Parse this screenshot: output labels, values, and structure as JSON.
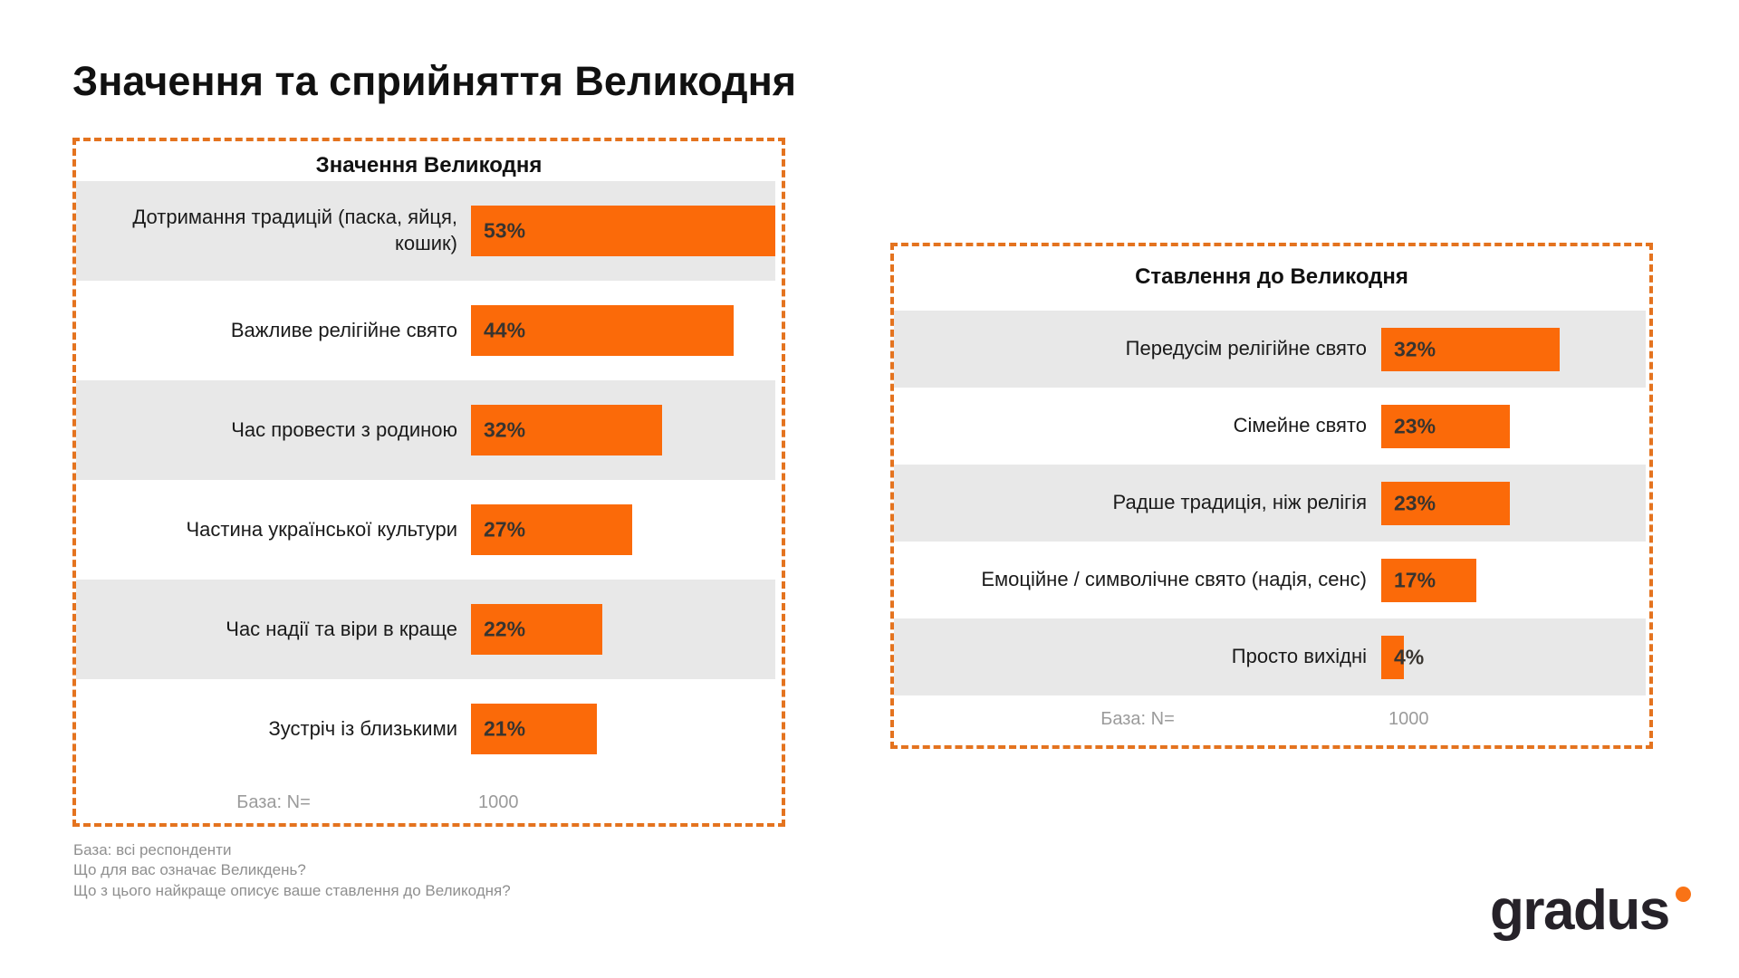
{
  "page": {
    "title": "Значення та сприйняття Великодня"
  },
  "colors": {
    "bar": "#FB6A09",
    "panel_border": "#E4731F",
    "row_shade": "#E8E8E8",
    "muted_text": "#9B9B9B",
    "footnote_text": "#8F8F8F",
    "logo_text": "#262229",
    "logo_dot": "#F97316"
  },
  "chart_data": [
    {
      "type": "bar",
      "orientation": "horizontal",
      "title": "Значення Великодня",
      "categories": [
        "Дотримання традицій (паска, яйця, кошик)",
        "Важливе релігійне свято",
        "Час провести з родиною",
        "Частина української культури",
        "Час надії та віри в краще",
        "Зустріч із близькими"
      ],
      "values": [
        53,
        44,
        32,
        27,
        22,
        21
      ],
      "value_labels": [
        "53%",
        "44%",
        "32%",
        "27%",
        "22%",
        "21%"
      ],
      "unit": "%",
      "xlim": [
        0,
        53
      ],
      "grid": false,
      "legend": false,
      "base_label": "База: N=",
      "base_value": "1000"
    },
    {
      "type": "bar",
      "orientation": "horizontal",
      "title": "Ставлення до Великодня",
      "categories": [
        "Передусім релігійне свято",
        "Сімейне свято",
        "Радше традиція, ніж релігія",
        "Емоційне / символічне свято (надія, сенс)",
        "Просто вихідні"
      ],
      "values": [
        32,
        23,
        23,
        17,
        4
      ],
      "value_labels": [
        "32%",
        "23%",
        "23%",
        "17%",
        "4%"
      ],
      "unit": "%",
      "xlim": [
        0,
        32
      ],
      "grid": false,
      "legend": false,
      "base_label": "База: N=",
      "base_value": "1000"
    }
  ],
  "footnotes": [
    "База: всі респонденти",
    "Що для вас означає Великдень?",
    "Що з цього найкраще описує ваше ставлення до Великодня?"
  ],
  "logo": {
    "text": "gradus"
  }
}
